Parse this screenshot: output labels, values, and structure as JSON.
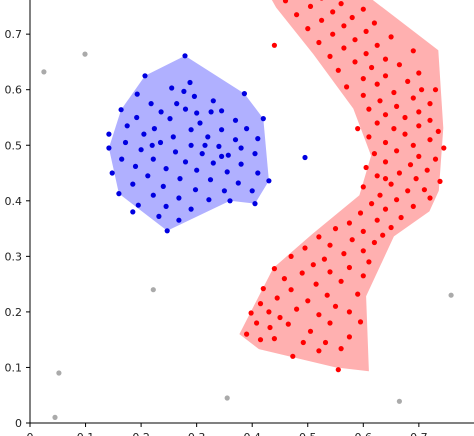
{
  "chart_data": {
    "type": "scatter",
    "title": "",
    "xlabel": "",
    "ylabel": "",
    "xlim": [
      0.0,
      0.78
    ],
    "ylim": [
      0.0,
      0.78
    ],
    "x_ticks": [
      0.0,
      0.1,
      0.2,
      0.3,
      0.4,
      0.5,
      0.6,
      0.7
    ],
    "x_tick_labels": [
      "0",
      "0.1",
      "0.2",
      "0.3",
      "0.4",
      "0.5",
      "0.6",
      "0.7"
    ],
    "y_ticks": [
      0.0,
      0.1,
      0.2,
      0.3,
      0.4,
      0.5,
      0.6,
      0.7
    ],
    "y_tick_labels": [
      "0",
      "0.1",
      "0.2",
      "0.3",
      "0.4",
      "0.5",
      "0.6",
      "0.7"
    ],
    "grid": false,
    "legend": "none",
    "regions": [
      {
        "name": "",
        "color": "#b0b0ff",
        "hull": [
          [
            0.279,
            0.661
          ],
          [
            0.386,
            0.593
          ],
          [
            0.42,
            0.548
          ],
          [
            0.43,
            0.436
          ],
          [
            0.405,
            0.395
          ],
          [
            0.36,
            0.4
          ],
          [
            0.247,
            0.346
          ],
          [
            0.16,
            0.413
          ],
          [
            0.142,
            0.495
          ],
          [
            0.164,
            0.564
          ],
          [
            0.207,
            0.625
          ]
        ]
      },
      {
        "name": "",
        "color": "#ffb0b0",
        "hull": [
          [
            0.58,
            0.79
          ],
          [
            0.735,
            0.671
          ],
          [
            0.744,
            0.531
          ],
          [
            0.736,
            0.418
          ],
          [
            0.719,
            0.381
          ],
          [
            0.655,
            0.336
          ],
          [
            0.605,
            0.228
          ],
          [
            0.61,
            0.093
          ],
          [
            0.55,
            0.1
          ],
          [
            0.412,
            0.133
          ],
          [
            0.377,
            0.16
          ],
          [
            0.438,
            0.279
          ],
          [
            0.508,
            0.34
          ],
          [
            0.593,
            0.41
          ],
          [
            0.614,
            0.481
          ],
          [
            0.582,
            0.566
          ],
          [
            0.51,
            0.664
          ],
          [
            0.443,
            0.748
          ],
          [
            0.425,
            0.78
          ]
        ]
      }
    ],
    "series": [
      {
        "name": "",
        "color": "#ff0000",
        "points": [
          [
            0.555,
            0.096
          ],
          [
            0.473,
            0.12
          ],
          [
            0.52,
            0.13
          ],
          [
            0.56,
            0.134
          ],
          [
            0.492,
            0.145
          ],
          [
            0.532,
            0.145
          ],
          [
            0.415,
            0.15
          ],
          [
            0.44,
            0.152
          ],
          [
            0.575,
            0.155
          ],
          [
            0.39,
            0.16
          ],
          [
            0.505,
            0.165
          ],
          [
            0.432,
            0.172
          ],
          [
            0.465,
            0.178
          ],
          [
            0.408,
            0.18
          ],
          [
            0.54,
            0.18
          ],
          [
            0.595,
            0.182
          ],
          [
            0.45,
            0.19
          ],
          [
            0.52,
            0.195
          ],
          [
            0.398,
            0.198
          ],
          [
            0.43,
            0.2
          ],
          [
            0.575,
            0.2
          ],
          [
            0.48,
            0.205
          ],
          [
            0.55,
            0.21
          ],
          [
            0.415,
            0.215
          ],
          [
            0.5,
            0.22
          ],
          [
            0.445,
            0.225
          ],
          [
            0.535,
            0.23
          ],
          [
            0.59,
            0.232
          ],
          [
            0.47,
            0.24
          ],
          [
            0.42,
            0.242
          ],
          [
            0.515,
            0.25
          ],
          [
            0.56,
            0.255
          ],
          [
            0.458,
            0.26
          ],
          [
            0.6,
            0.265
          ],
          [
            0.49,
            0.27
          ],
          [
            0.54,
            0.272
          ],
          [
            0.44,
            0.278
          ],
          [
            0.575,
            0.28
          ],
          [
            0.51,
            0.285
          ],
          [
            0.61,
            0.29
          ],
          [
            0.53,
            0.295
          ],
          [
            0.47,
            0.3
          ],
          [
            0.565,
            0.305
          ],
          [
            0.6,
            0.31
          ],
          [
            0.495,
            0.315
          ],
          [
            0.54,
            0.32
          ],
          [
            0.62,
            0.325
          ],
          [
            0.58,
            0.33
          ],
          [
            0.52,
            0.335
          ],
          [
            0.635,
            0.338
          ],
          [
            0.6,
            0.345
          ],
          [
            0.55,
            0.35
          ],
          [
            0.65,
            0.352
          ],
          [
            0.575,
            0.36
          ],
          [
            0.625,
            0.365
          ],
          [
            0.668,
            0.37
          ],
          [
            0.595,
            0.378
          ],
          [
            0.64,
            0.385
          ],
          [
            0.69,
            0.39
          ],
          [
            0.615,
            0.395
          ],
          [
            0.66,
            0.402
          ],
          [
            0.72,
            0.405
          ],
          [
            0.63,
            0.41
          ],
          [
            0.68,
            0.418
          ],
          [
            0.71,
            0.42
          ],
          [
            0.6,
            0.425
          ],
          [
            0.65,
            0.43
          ],
          [
            0.738,
            0.435
          ],
          [
            0.695,
            0.44
          ],
          [
            0.625,
            0.445
          ],
          [
            0.665,
            0.45
          ],
          [
            0.715,
            0.455
          ],
          [
            0.605,
            0.46
          ],
          [
            0.685,
            0.465
          ],
          [
            0.64,
            0.47
          ],
          [
            0.73,
            0.475
          ],
          [
            0.7,
            0.48
          ],
          [
            0.62,
            0.485
          ],
          [
            0.66,
            0.49
          ],
          [
            0.745,
            0.495
          ],
          [
            0.69,
            0.5
          ],
          [
            0.64,
            0.505
          ],
          [
            0.72,
            0.51
          ],
          [
            0.61,
            0.515
          ],
          [
            0.675,
            0.52
          ],
          [
            0.735,
            0.525
          ],
          [
            0.655,
            0.53
          ],
          [
            0.7,
            0.535
          ],
          [
            0.625,
            0.54
          ],
          [
            0.72,
            0.545
          ],
          [
            0.675,
            0.55
          ],
          [
            0.64,
            0.555
          ],
          [
            0.7,
            0.56
          ],
          [
            0.61,
            0.565
          ],
          [
            0.66,
            0.57
          ],
          [
            0.72,
            0.575
          ],
          [
            0.63,
            0.58
          ],
          [
            0.69,
            0.585
          ],
          [
            0.6,
            0.59
          ],
          [
            0.655,
            0.595
          ],
          [
            0.705,
            0.6
          ],
          [
            0.57,
            0.605
          ],
          [
            0.625,
            0.61
          ],
          [
            0.68,
            0.615
          ],
          [
            0.6,
            0.62
          ],
          [
            0.64,
            0.625
          ],
          [
            0.7,
            0.63
          ],
          [
            0.555,
            0.635
          ],
          [
            0.615,
            0.64
          ],
          [
            0.665,
            0.645
          ],
          [
            0.585,
            0.65
          ],
          [
            0.64,
            0.655
          ],
          [
            0.54,
            0.66
          ],
          [
            0.605,
            0.665
          ],
          [
            0.69,
            0.67
          ],
          [
            0.565,
            0.675
          ],
          [
            0.625,
            0.68
          ],
          [
            0.52,
            0.685
          ],
          [
            0.585,
            0.69
          ],
          [
            0.65,
            0.695
          ],
          [
            0.545,
            0.7
          ],
          [
            0.605,
            0.705
          ],
          [
            0.5,
            0.71
          ],
          [
            0.565,
            0.715
          ],
          [
            0.62,
            0.72
          ],
          [
            0.525,
            0.725
          ],
          [
            0.58,
            0.73
          ],
          [
            0.48,
            0.735
          ],
          [
            0.545,
            0.74
          ],
          [
            0.6,
            0.745
          ],
          [
            0.505,
            0.75
          ],
          [
            0.56,
            0.755
          ],
          [
            0.46,
            0.76
          ],
          [
            0.525,
            0.765
          ],
          [
            0.58,
            0.77
          ],
          [
            0.488,
            0.775
          ],
          [
            0.545,
            0.775
          ],
          [
            0.44,
            0.68
          ],
          [
            0.64,
            0.44
          ],
          [
            0.73,
            0.6
          ],
          [
            0.59,
            0.53
          ]
        ]
      },
      {
        "name": "",
        "color": "#0000e0",
        "points": [
          [
            0.279,
            0.661
          ],
          [
            0.207,
            0.625
          ],
          [
            0.288,
            0.613
          ],
          [
            0.255,
            0.603
          ],
          [
            0.277,
            0.597
          ],
          [
            0.193,
            0.592
          ],
          [
            0.386,
            0.593
          ],
          [
            0.296,
            0.588
          ],
          [
            0.264,
            0.575
          ],
          [
            0.218,
            0.575
          ],
          [
            0.164,
            0.564
          ],
          [
            0.28,
            0.565
          ],
          [
            0.236,
            0.56
          ],
          [
            0.3,
            0.558
          ],
          [
            0.326,
            0.56
          ],
          [
            0.345,
            0.562
          ],
          [
            0.192,
            0.55
          ],
          [
            0.252,
            0.548
          ],
          [
            0.306,
            0.54
          ],
          [
            0.37,
            0.545
          ],
          [
            0.42,
            0.548
          ],
          [
            0.39,
            0.53
          ],
          [
            0.175,
            0.535
          ],
          [
            0.224,
            0.53
          ],
          [
            0.29,
            0.528
          ],
          [
            0.345,
            0.528
          ],
          [
            0.142,
            0.52
          ],
          [
            0.205,
            0.52
          ],
          [
            0.258,
            0.515
          ],
          [
            0.32,
            0.515
          ],
          [
            0.37,
            0.51
          ],
          [
            0.41,
            0.512
          ],
          [
            0.172,
            0.505
          ],
          [
            0.235,
            0.505
          ],
          [
            0.29,
            0.5
          ],
          [
            0.34,
            0.498
          ],
          [
            0.38,
            0.495
          ],
          [
            0.142,
            0.495
          ],
          [
            0.2,
            0.492
          ],
          [
            0.262,
            0.488
          ],
          [
            0.31,
            0.485
          ],
          [
            0.357,
            0.482
          ],
          [
            0.405,
            0.485
          ],
          [
            0.495,
            0.478
          ],
          [
            0.165,
            0.475
          ],
          [
            0.222,
            0.475
          ],
          [
            0.28,
            0.47
          ],
          [
            0.33,
            0.468
          ],
          [
            0.38,
            0.466
          ],
          [
            0.19,
            0.462
          ],
          [
            0.245,
            0.458
          ],
          [
            0.3,
            0.455
          ],
          [
            0.355,
            0.452
          ],
          [
            0.41,
            0.45
          ],
          [
            0.148,
            0.45
          ],
          [
            0.212,
            0.445
          ],
          [
            0.27,
            0.44
          ],
          [
            0.325,
            0.438
          ],
          [
            0.43,
            0.436
          ],
          [
            0.375,
            0.432
          ],
          [
            0.185,
            0.43
          ],
          [
            0.24,
            0.426
          ],
          [
            0.298,
            0.42
          ],
          [
            0.35,
            0.418
          ],
          [
            0.4,
            0.418
          ],
          [
            0.16,
            0.413
          ],
          [
            0.222,
            0.41
          ],
          [
            0.268,
            0.405
          ],
          [
            0.322,
            0.402
          ],
          [
            0.36,
            0.4
          ],
          [
            0.405,
            0.395
          ],
          [
            0.195,
            0.392
          ],
          [
            0.245,
            0.39
          ],
          [
            0.29,
            0.385
          ],
          [
            0.185,
            0.38
          ],
          [
            0.232,
            0.372
          ],
          [
            0.268,
            0.365
          ],
          [
            0.247,
            0.346
          ],
          [
            0.345,
            0.48
          ],
          [
            0.315,
            0.5
          ],
          [
            0.22,
            0.5
          ],
          [
            0.33,
            0.58
          ]
        ]
      },
      {
        "name": "",
        "color": "#aaaaaa",
        "points": [
          [
            0.099,
            0.664
          ],
          [
            0.025,
            0.632
          ],
          [
            0.222,
            0.24
          ],
          [
            0.758,
            0.23
          ],
          [
            0.052,
            0.09
          ],
          [
            0.355,
            0.045
          ],
          [
            0.665,
            0.039
          ],
          [
            0.045,
            0.01
          ]
        ]
      }
    ]
  }
}
